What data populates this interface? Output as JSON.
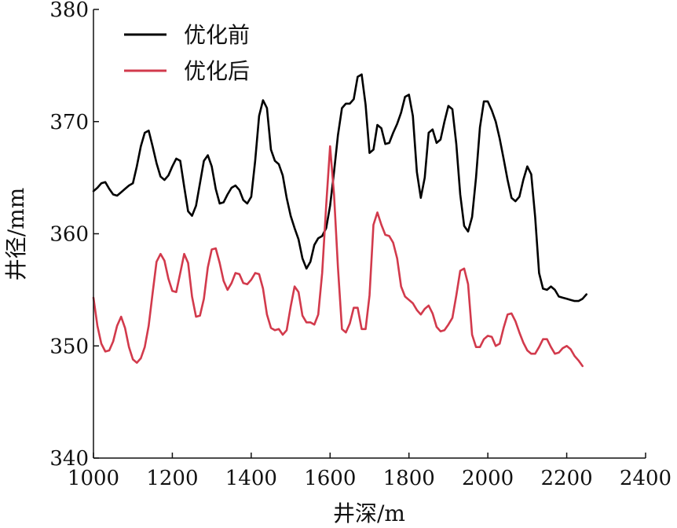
{
  "chart_data": {
    "type": "line",
    "title": "",
    "xlabel": "井深/m",
    "ylabel": "井径/mm",
    "xlim": [
      1000,
      2400
    ],
    "ylim": [
      340,
      380
    ],
    "x_ticks": [
      "1000",
      "1200",
      "1400",
      "1600",
      "1800",
      "2000",
      "2200",
      "2400"
    ],
    "y_ticks": [
      "340",
      "350",
      "360",
      "370",
      "380"
    ],
    "grid": false,
    "legend_position": "top-left",
    "series": [
      {
        "name": "优化前",
        "color": "#000000",
        "points": [
          [
            1000,
            363.8
          ],
          [
            1010,
            364.1
          ],
          [
            1020,
            364.5
          ],
          [
            1030,
            364.6
          ],
          [
            1040,
            364.0
          ],
          [
            1050,
            363.5
          ],
          [
            1060,
            363.4
          ],
          [
            1070,
            363.7
          ],
          [
            1080,
            364.0
          ],
          [
            1090,
            364.3
          ],
          [
            1100,
            364.5
          ],
          [
            1110,
            366.0
          ],
          [
            1120,
            367.8
          ],
          [
            1130,
            369.0
          ],
          [
            1140,
            369.2
          ],
          [
            1150,
            367.8
          ],
          [
            1160,
            366.3
          ],
          [
            1170,
            365.1
          ],
          [
            1180,
            364.8
          ],
          [
            1190,
            365.2
          ],
          [
            1200,
            366.0
          ],
          [
            1210,
            366.7
          ],
          [
            1220,
            366.5
          ],
          [
            1230,
            364.2
          ],
          [
            1240,
            362.0
          ],
          [
            1250,
            361.6
          ],
          [
            1260,
            362.5
          ],
          [
            1270,
            364.5
          ],
          [
            1280,
            366.5
          ],
          [
            1290,
            367.0
          ],
          [
            1300,
            366.0
          ],
          [
            1310,
            364.0
          ],
          [
            1320,
            362.7
          ],
          [
            1330,
            362.8
          ],
          [
            1340,
            363.5
          ],
          [
            1350,
            364.1
          ],
          [
            1360,
            364.3
          ],
          [
            1370,
            363.9
          ],
          [
            1380,
            363.0
          ],
          [
            1390,
            362.7
          ],
          [
            1400,
            363.3
          ],
          [
            1410,
            366.5
          ],
          [
            1420,
            370.5
          ],
          [
            1430,
            371.9
          ],
          [
            1440,
            371.2
          ],
          [
            1450,
            367.5
          ],
          [
            1460,
            366.5
          ],
          [
            1470,
            366.2
          ],
          [
            1480,
            365.2
          ],
          [
            1490,
            363.2
          ],
          [
            1500,
            361.6
          ],
          [
            1510,
            360.5
          ],
          [
            1520,
            359.5
          ],
          [
            1530,
            357.8
          ],
          [
            1540,
            356.9
          ],
          [
            1550,
            357.5
          ],
          [
            1560,
            359.0
          ],
          [
            1570,
            359.6
          ],
          [
            1580,
            359.8
          ],
          [
            1590,
            360.5
          ],
          [
            1600,
            362.5
          ],
          [
            1610,
            365.5
          ],
          [
            1620,
            368.8
          ],
          [
            1630,
            371.2
          ],
          [
            1640,
            371.6
          ],
          [
            1650,
            371.6
          ],
          [
            1660,
            372.0
          ],
          [
            1670,
            374.0
          ],
          [
            1680,
            374.2
          ],
          [
            1690,
            371.5
          ],
          [
            1700,
            367.2
          ],
          [
            1710,
            367.5
          ],
          [
            1720,
            369.7
          ],
          [
            1730,
            369.4
          ],
          [
            1740,
            368.0
          ],
          [
            1750,
            368.1
          ],
          [
            1760,
            369.0
          ],
          [
            1770,
            369.8
          ],
          [
            1780,
            370.8
          ],
          [
            1790,
            372.2
          ],
          [
            1800,
            372.4
          ],
          [
            1810,
            370.5
          ],
          [
            1820,
            365.5
          ],
          [
            1830,
            363.2
          ],
          [
            1840,
            365.0
          ],
          [
            1850,
            369.0
          ],
          [
            1860,
            369.3
          ],
          [
            1870,
            368.1
          ],
          [
            1880,
            368.4
          ],
          [
            1890,
            370.0
          ],
          [
            1900,
            371.4
          ],
          [
            1910,
            371.1
          ],
          [
            1920,
            368.0
          ],
          [
            1930,
            363.5
          ],
          [
            1940,
            360.7
          ],
          [
            1950,
            360.2
          ],
          [
            1960,
            361.5
          ],
          [
            1970,
            365.0
          ],
          [
            1980,
            369.5
          ],
          [
            1990,
            371.8
          ],
          [
            2000,
            371.8
          ],
          [
            2010,
            371.0
          ],
          [
            2020,
            370.0
          ],
          [
            2030,
            368.5
          ],
          [
            2040,
            366.7
          ],
          [
            2050,
            364.8
          ],
          [
            2060,
            363.2
          ],
          [
            2070,
            362.9
          ],
          [
            2080,
            363.3
          ],
          [
            2090,
            364.8
          ],
          [
            2100,
            366.0
          ],
          [
            2110,
            365.3
          ],
          [
            2120,
            361.5
          ],
          [
            2130,
            356.5
          ],
          [
            2140,
            355.1
          ],
          [
            2150,
            355.0
          ],
          [
            2160,
            355.3
          ],
          [
            2170,
            355.0
          ],
          [
            2180,
            354.4
          ],
          [
            2190,
            354.3
          ],
          [
            2200,
            354.2
          ],
          [
            2210,
            354.1
          ],
          [
            2220,
            354.0
          ],
          [
            2230,
            354.0
          ],
          [
            2240,
            354.2
          ],
          [
            2250,
            354.6
          ]
        ]
      },
      {
        "name": "优化后",
        "color": "#d23a4c",
        "points": [
          [
            1000,
            354.3
          ],
          [
            1010,
            351.8
          ],
          [
            1020,
            350.2
          ],
          [
            1030,
            349.5
          ],
          [
            1040,
            349.6
          ],
          [
            1050,
            350.4
          ],
          [
            1060,
            351.8
          ],
          [
            1070,
            352.6
          ],
          [
            1080,
            351.6
          ],
          [
            1090,
            349.9
          ],
          [
            1100,
            348.8
          ],
          [
            1110,
            348.5
          ],
          [
            1120,
            348.9
          ],
          [
            1130,
            349.9
          ],
          [
            1140,
            351.8
          ],
          [
            1150,
            354.7
          ],
          [
            1160,
            357.5
          ],
          [
            1170,
            358.2
          ],
          [
            1180,
            357.6
          ],
          [
            1190,
            356.0
          ],
          [
            1200,
            354.9
          ],
          [
            1210,
            354.8
          ],
          [
            1220,
            356.5
          ],
          [
            1230,
            358.2
          ],
          [
            1240,
            357.4
          ],
          [
            1250,
            354.4
          ],
          [
            1260,
            352.6
          ],
          [
            1270,
            352.7
          ],
          [
            1280,
            354.2
          ],
          [
            1290,
            357.0
          ],
          [
            1300,
            358.6
          ],
          [
            1310,
            358.7
          ],
          [
            1320,
            357.4
          ],
          [
            1330,
            355.8
          ],
          [
            1340,
            355.0
          ],
          [
            1350,
            355.6
          ],
          [
            1360,
            356.5
          ],
          [
            1370,
            356.4
          ],
          [
            1380,
            355.6
          ],
          [
            1390,
            355.5
          ],
          [
            1400,
            355.9
          ],
          [
            1410,
            356.5
          ],
          [
            1420,
            356.4
          ],
          [
            1430,
            355.1
          ],
          [
            1440,
            352.8
          ],
          [
            1450,
            351.6
          ],
          [
            1460,
            351.4
          ],
          [
            1470,
            351.5
          ],
          [
            1480,
            351.0
          ],
          [
            1490,
            351.4
          ],
          [
            1500,
            353.5
          ],
          [
            1510,
            355.3
          ],
          [
            1520,
            354.8
          ],
          [
            1530,
            352.7
          ],
          [
            1540,
            352.1
          ],
          [
            1550,
            352.1
          ],
          [
            1560,
            351.9
          ],
          [
            1570,
            352.8
          ],
          [
            1580,
            356.5
          ],
          [
            1590,
            362.5
          ],
          [
            1600,
            367.8
          ],
          [
            1610,
            363.5
          ],
          [
            1620,
            357.0
          ],
          [
            1630,
            351.5
          ],
          [
            1640,
            351.2
          ],
          [
            1650,
            352.0
          ],
          [
            1660,
            353.4
          ],
          [
            1670,
            353.4
          ],
          [
            1680,
            351.5
          ],
          [
            1690,
            351.5
          ],
          [
            1700,
            354.5
          ],
          [
            1710,
            360.8
          ],
          [
            1720,
            361.9
          ],
          [
            1730,
            360.8
          ],
          [
            1740,
            359.9
          ],
          [
            1750,
            359.8
          ],
          [
            1760,
            359.2
          ],
          [
            1770,
            357.8
          ],
          [
            1780,
            355.3
          ],
          [
            1790,
            354.4
          ],
          [
            1800,
            354.1
          ],
          [
            1810,
            353.8
          ],
          [
            1820,
            353.2
          ],
          [
            1830,
            352.8
          ],
          [
            1840,
            353.3
          ],
          [
            1850,
            353.6
          ],
          [
            1860,
            352.9
          ],
          [
            1870,
            351.7
          ],
          [
            1880,
            351.3
          ],
          [
            1890,
            351.4
          ],
          [
            1900,
            351.9
          ],
          [
            1910,
            352.5
          ],
          [
            1920,
            354.5
          ],
          [
            1930,
            356.7
          ],
          [
            1940,
            356.9
          ],
          [
            1950,
            355.5
          ],
          [
            1960,
            351.0
          ],
          [
            1970,
            349.9
          ],
          [
            1980,
            349.9
          ],
          [
            1990,
            350.6
          ],
          [
            2000,
            350.9
          ],
          [
            2010,
            350.8
          ],
          [
            2020,
            350.0
          ],
          [
            2030,
            350.2
          ],
          [
            2040,
            351.6
          ],
          [
            2050,
            352.8
          ],
          [
            2060,
            352.9
          ],
          [
            2070,
            352.2
          ],
          [
            2080,
            351.2
          ],
          [
            2090,
            350.3
          ],
          [
            2100,
            349.6
          ],
          [
            2110,
            349.3
          ],
          [
            2120,
            349.3
          ],
          [
            2130,
            349.9
          ],
          [
            2140,
            350.6
          ],
          [
            2150,
            350.6
          ],
          [
            2160,
            349.9
          ],
          [
            2170,
            349.3
          ],
          [
            2180,
            349.4
          ],
          [
            2190,
            349.8
          ],
          [
            2200,
            350.0
          ],
          [
            2210,
            349.7
          ],
          [
            2220,
            349.1
          ],
          [
            2230,
            348.7
          ],
          [
            2240,
            348.2
          ]
        ]
      }
    ]
  }
}
